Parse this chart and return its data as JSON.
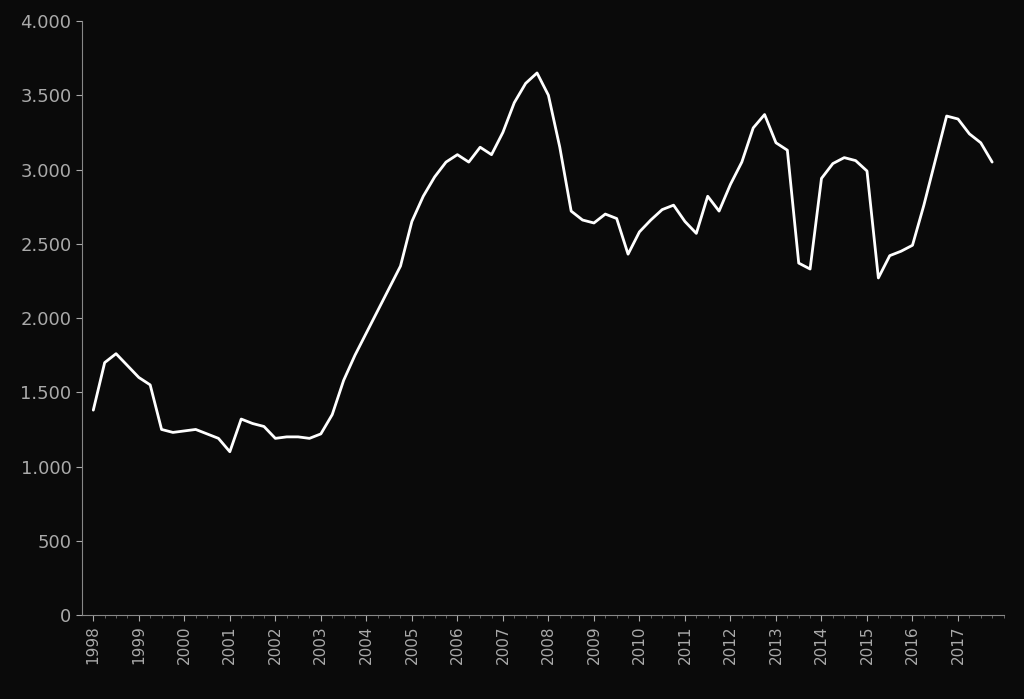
{
  "background_color": "#0a0a0a",
  "line_color": "#ffffff",
  "line_width": 2.0,
  "axes_color": "#888888",
  "tick_color": "#aaaaaa",
  "ylim": [
    0,
    4000
  ],
  "yticks": [
    0,
    500,
    1000,
    1500,
    2000,
    2500,
    3000,
    3500,
    4000
  ],
  "ytick_labels": [
    "0",
    "500",
    "1.000",
    "1.500",
    "2.000",
    "2.500",
    "3.000",
    "3.500",
    "4.000"
  ],
  "xlabel_years": [
    "1998",
    "1999",
    "2000",
    "2001",
    "2002",
    "2003",
    "2004",
    "2005",
    "2006",
    "2007",
    "2008",
    "2009",
    "2010",
    "2011",
    "2012",
    "2013",
    "2014",
    "2015",
    "2016",
    "2017"
  ],
  "values": [
    1380,
    1700,
    1760,
    1680,
    1600,
    1550,
    1250,
    1230,
    1240,
    1250,
    1220,
    1190,
    1100,
    1320,
    1290,
    1270,
    1190,
    1200,
    1200,
    1190,
    1220,
    1350,
    1580,
    1750,
    1900,
    2050,
    2200,
    2350,
    2650,
    2820,
    2950,
    3050,
    3100,
    3050,
    3150,
    3100,
    3250,
    3450,
    3580,
    3650,
    3500,
    3150,
    2720,
    2660,
    2640,
    2700,
    2670,
    2430,
    2580,
    2660,
    2730,
    2760,
    2650,
    2570,
    2820,
    2720,
    2900,
    3050,
    3280,
    3370,
    3180,
    3130,
    2370,
    2330,
    2940,
    3040,
    3080,
    3060,
    2990,
    2270,
    2420,
    2450,
    2490,
    2760,
    3060,
    3360,
    3340,
    3240,
    3180,
    3050
  ],
  "xlim_left": 1997.75,
  "xlim_right": 2017.95,
  "figsize": [
    10.24,
    6.99
  ],
  "dpi": 100
}
